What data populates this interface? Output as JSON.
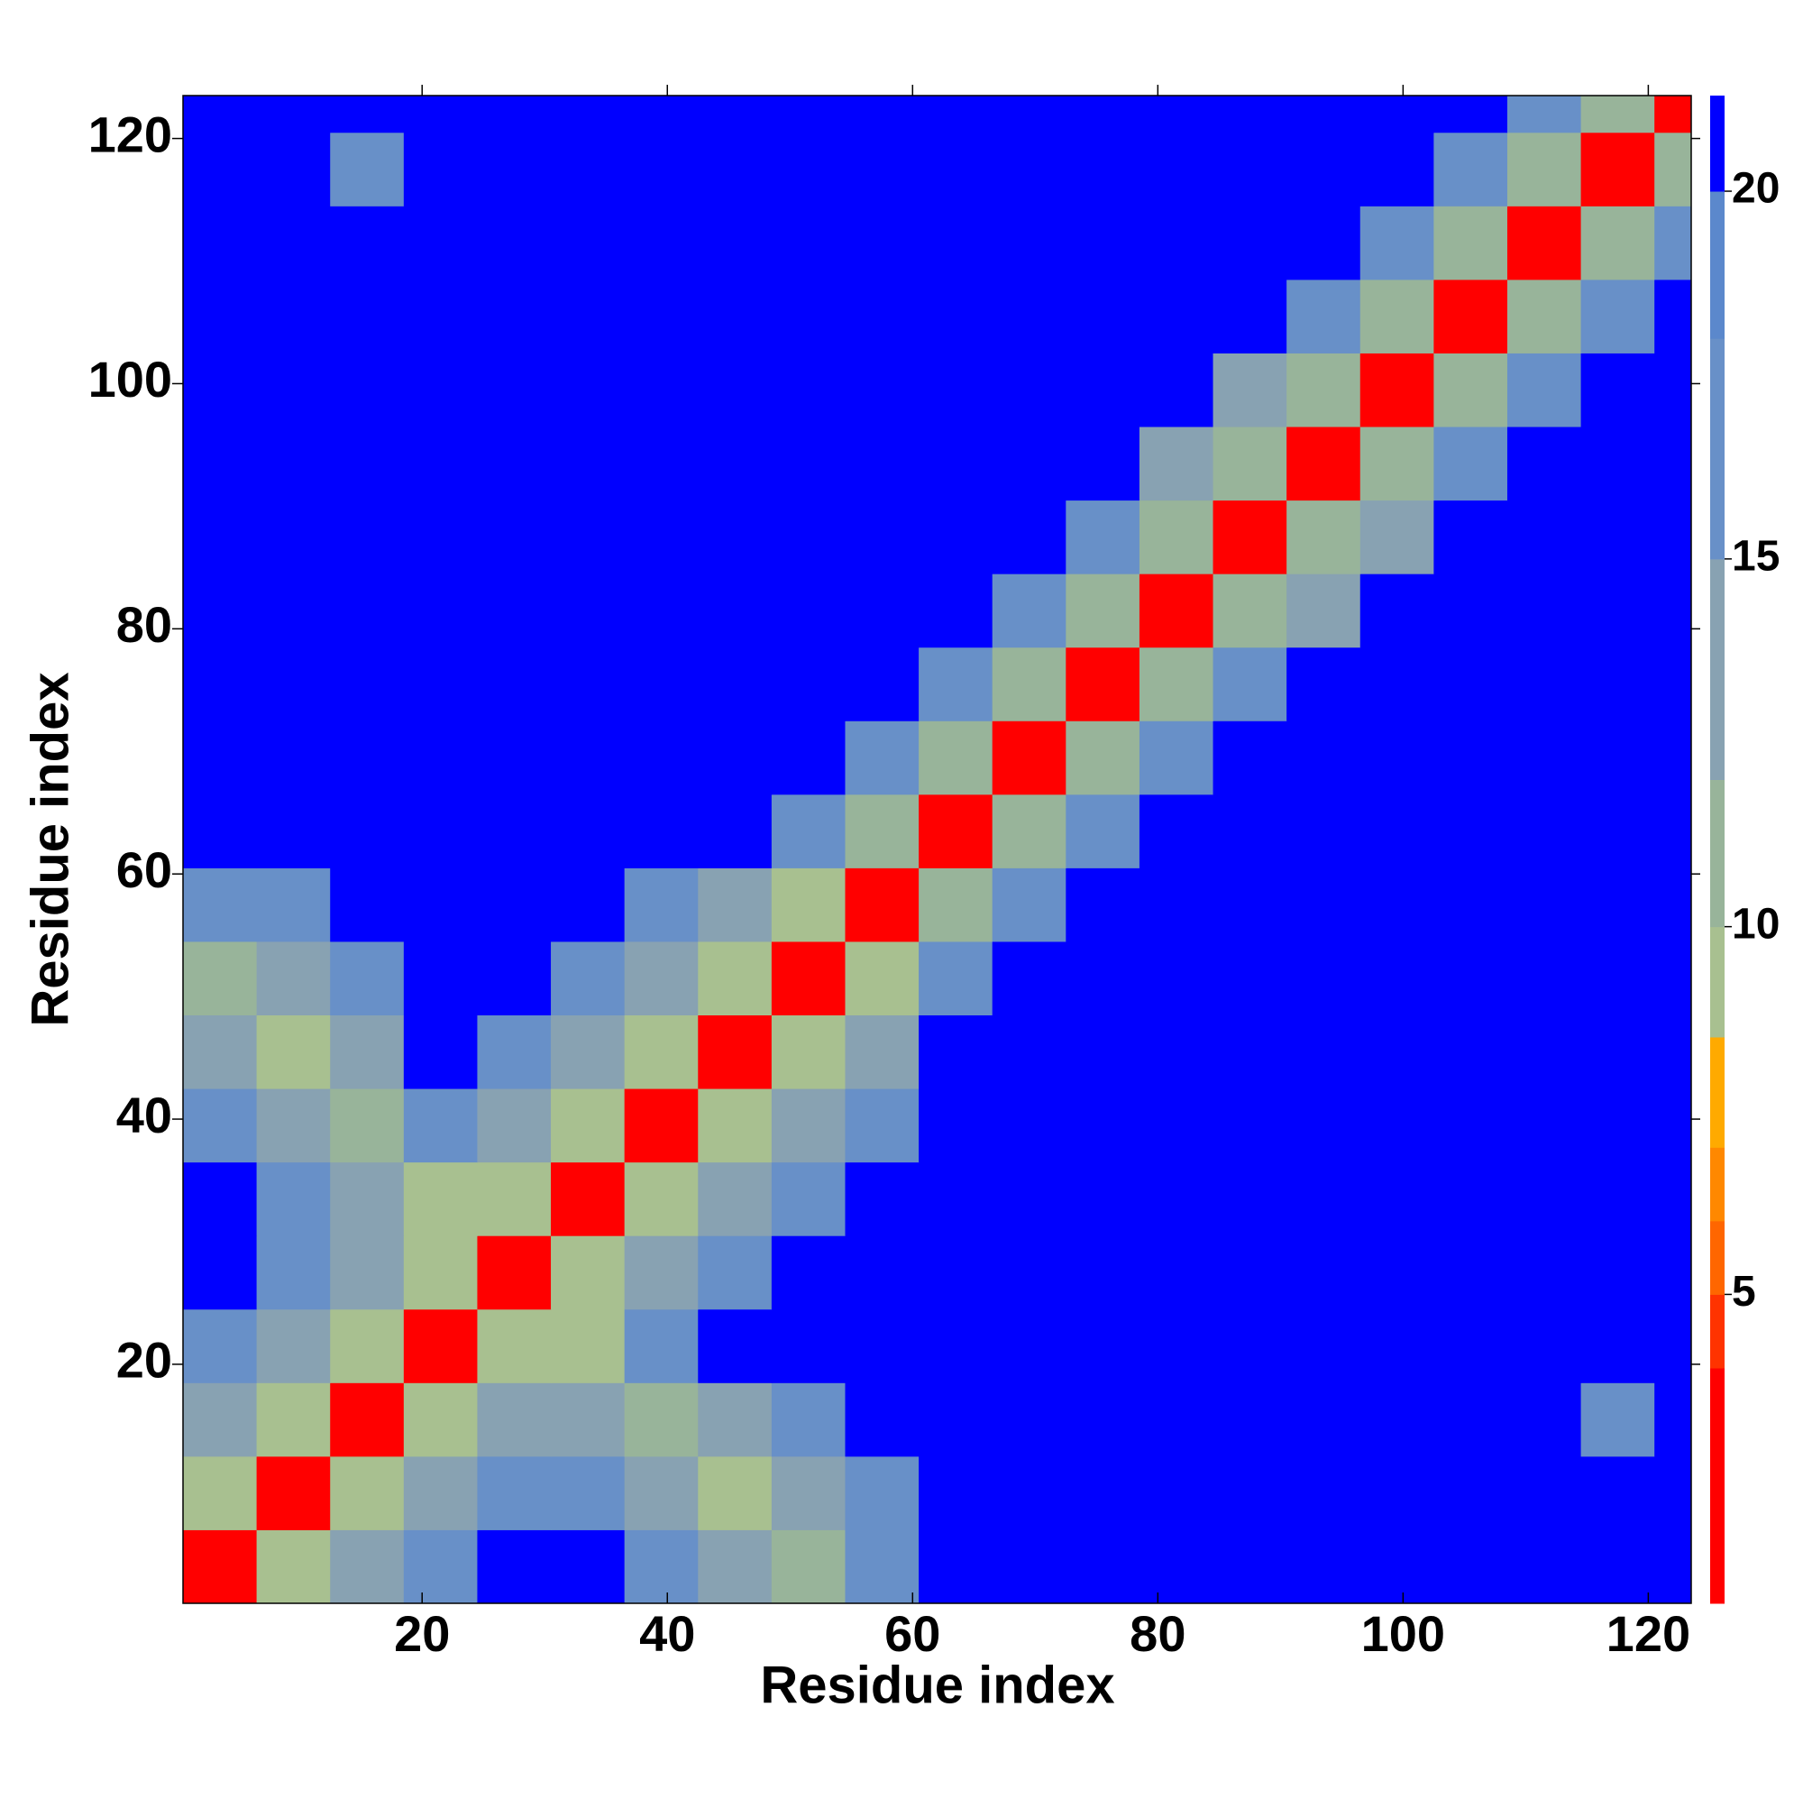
{
  "chart_data": {
    "type": "heatmap",
    "xlabel": "Residue index",
    "ylabel": "Residue index",
    "xbins": [
      0.5,
      6.5,
      12.5,
      18.5,
      24.5,
      30.5,
      36.5,
      42.5,
      48.5,
      54.5,
      60.5,
      66.5,
      72.5,
      78.5,
      84.5,
      90.5,
      96.5,
      102.5,
      108.5,
      114.5,
      120.5,
      123.5
    ],
    "ybins": [
      0.5,
      6.5,
      12.5,
      18.5,
      24.5,
      30.5,
      36.5,
      42.5,
      48.5,
      54.5,
      60.5,
      66.5,
      72.5,
      78.5,
      84.5,
      90.5,
      96.5,
      102.5,
      108.5,
      114.5,
      120.5,
      123.5
    ],
    "xlim": [
      0.5,
      123.5
    ],
    "ylim": [
      0.5,
      123.5
    ],
    "xticks": [
      20,
      40,
      60,
      80,
      100,
      120
    ],
    "yticks": [
      20,
      40,
      60,
      80,
      100,
      120
    ],
    "z": [
      [
        3,
        9,
        13,
        17,
        21,
        21,
        16,
        12,
        10,
        15,
        21,
        21,
        21,
        21,
        21,
        21,
        21,
        21,
        21,
        21,
        21
      ],
      [
        9,
        3,
        9,
        13,
        17,
        16,
        12,
        9,
        13,
        16,
        21,
        21,
        21,
        21,
        21,
        21,
        21,
        21,
        21,
        21,
        21
      ],
      [
        13,
        9,
        3,
        9,
        13,
        12,
        10,
        13,
        16,
        21,
        21,
        21,
        21,
        21,
        21,
        21,
        21,
        21,
        21,
        17,
        21
      ],
      [
        17,
        13,
        9,
        3,
        9,
        9,
        17,
        21,
        21,
        21,
        21,
        21,
        21,
        21,
        21,
        21,
        21,
        21,
        21,
        21,
        21
      ],
      [
        21,
        17,
        13,
        9,
        3,
        9,
        13,
        17,
        21,
        21,
        21,
        21,
        21,
        21,
        21,
        21,
        21,
        21,
        21,
        21,
        21
      ],
      [
        21,
        16,
        12,
        9,
        9,
        3,
        9,
        13,
        17,
        21,
        21,
        21,
        21,
        21,
        21,
        21,
        21,
        21,
        21,
        21,
        21
      ],
      [
        16,
        12,
        10,
        17,
        13,
        9,
        3,
        9,
        13,
        17,
        21,
        21,
        21,
        21,
        21,
        21,
        21,
        21,
        21,
        21,
        21
      ],
      [
        12,
        9,
        13,
        21,
        17,
        13,
        9,
        3,
        9,
        13,
        21,
        21,
        21,
        21,
        21,
        21,
        21,
        21,
        21,
        21,
        21
      ],
      [
        10,
        13,
        16,
        21,
        21,
        17,
        13,
        9,
        3,
        9,
        17,
        21,
        21,
        21,
        21,
        21,
        21,
        21,
        21,
        21,
        21
      ],
      [
        15,
        16,
        21,
        21,
        21,
        21,
        17,
        13,
        9,
        3,
        10,
        17,
        21,
        21,
        21,
        21,
        21,
        21,
        21,
        21,
        21
      ],
      [
        21,
        21,
        21,
        21,
        21,
        21,
        21,
        21,
        17,
        10,
        3,
        10,
        15,
        21,
        21,
        21,
        21,
        21,
        21,
        21,
        21
      ],
      [
        21,
        21,
        21,
        21,
        21,
        21,
        21,
        21,
        21,
        17,
        10,
        3,
        10,
        15,
        21,
        21,
        21,
        21,
        21,
        21,
        21
      ],
      [
        21,
        21,
        21,
        21,
        21,
        21,
        21,
        21,
        21,
        21,
        15,
        10,
        3,
        10,
        15,
        21,
        21,
        21,
        21,
        21,
        21
      ],
      [
        21,
        21,
        21,
        21,
        21,
        21,
        21,
        21,
        21,
        21,
        21,
        15,
        10,
        3,
        10,
        13,
        21,
        21,
        21,
        21,
        21
      ],
      [
        21,
        21,
        21,
        21,
        21,
        21,
        21,
        21,
        21,
        21,
        21,
        21,
        15,
        10,
        3,
        10,
        14,
        21,
        21,
        21,
        21
      ],
      [
        21,
        21,
        21,
        21,
        21,
        21,
        21,
        21,
        21,
        21,
        21,
        21,
        21,
        13,
        10,
        3,
        10,
        17,
        21,
        21,
        21
      ],
      [
        21,
        21,
        21,
        21,
        21,
        21,
        21,
        21,
        21,
        21,
        21,
        21,
        21,
        21,
        14,
        10,
        3,
        10,
        17,
        21,
        21
      ],
      [
        21,
        21,
        21,
        21,
        21,
        21,
        21,
        21,
        21,
        21,
        21,
        21,
        21,
        21,
        21,
        17,
        10,
        3,
        10,
        17,
        21
      ],
      [
        21,
        21,
        21,
        21,
        21,
        21,
        21,
        21,
        21,
        21,
        21,
        21,
        21,
        21,
        21,
        21,
        17,
        10,
        3,
        10,
        17
      ],
      [
        21,
        21,
        17,
        21,
        21,
        21,
        21,
        21,
        21,
        21,
        21,
        21,
        21,
        21,
        21,
        21,
        21,
        17,
        10,
        3,
        10
      ],
      [
        21,
        21,
        21,
        21,
        21,
        21,
        21,
        21,
        21,
        21,
        21,
        21,
        21,
        21,
        21,
        21,
        21,
        21,
        17,
        10,
        3
      ]
    ],
    "levels": [
      0.8,
      4,
      5,
      6,
      7,
      8.5,
      10,
      12,
      15,
      18,
      20,
      21.3
    ],
    "colors": [
      "#ff0000",
      "#ff3300",
      "#ff6600",
      "#ff8800",
      "#ffaa00",
      "#a8c090",
      "#98b49a",
      "#88a2b2",
      "#6890c8",
      "#5b88cc",
      "#0000ff"
    ],
    "zlim": [
      0.8,
      21.3
    ],
    "zticks": [
      5,
      10,
      15,
      20
    ]
  }
}
